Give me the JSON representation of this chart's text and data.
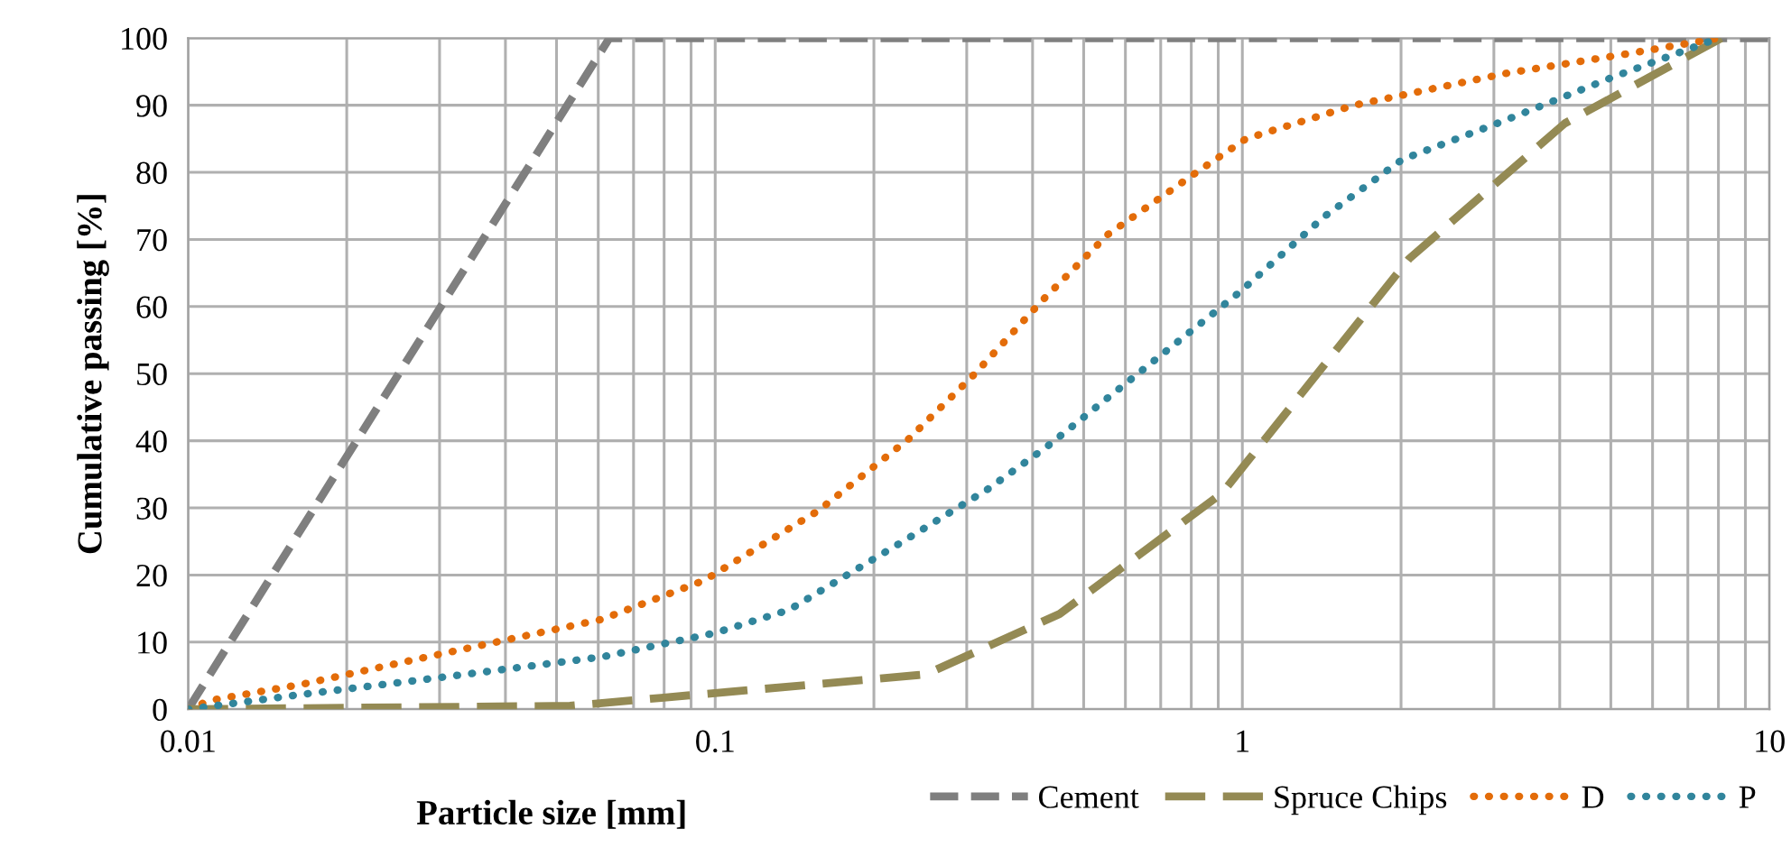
{
  "chart_data": {
    "type": "line",
    "xlabel": "Particle size [mm]",
    "ylabel": "Cumulative passing [%]",
    "log": "x",
    "xlim": [
      0.01,
      10
    ],
    "ylim": [
      0,
      100
    ],
    "xticks": [
      0.01,
      {
        "value": 0.02,
        "label": null
      },
      {
        "value": 0.03,
        "label": null
      },
      {
        "value": 0.04,
        "label": null
      },
      {
        "value": 0.05,
        "label": null
      },
      {
        "value": 0.06,
        "label": null
      },
      {
        "value": 0.07,
        "label": null
      },
      {
        "value": 0.08,
        "label": null
      },
      {
        "value": 0.09,
        "label": null
      },
      0.1,
      {
        "value": 0.2,
        "label": null
      },
      {
        "value": 0.3,
        "label": null
      },
      {
        "value": 0.4,
        "label": null
      },
      {
        "value": 0.5,
        "label": null
      },
      {
        "value": 0.6,
        "label": null
      },
      {
        "value": 0.7,
        "label": null
      },
      {
        "value": 0.8,
        "label": null
      },
      {
        "value": 0.9,
        "label": null
      },
      1,
      {
        "value": 2,
        "label": null
      },
      {
        "value": 3,
        "label": null
      },
      {
        "value": 4,
        "label": null
      },
      {
        "value": 5,
        "label": null
      },
      {
        "value": 6,
        "label": null
      },
      {
        "value": 7,
        "label": null
      },
      {
        "value": 8,
        "label": null
      },
      {
        "value": 9,
        "label": null
      },
      10
    ],
    "yticks": [
      0,
      10,
      20,
      30,
      40,
      50,
      60,
      70,
      80,
      90,
      100
    ],
    "grid": true,
    "legend": "bottom",
    "marker": "none",
    "series": [
      {
        "name": "Cement",
        "color": "#7f7f7f",
        "line_style": "dashed",
        "x": [
          0.01,
          0.063,
          10
        ],
        "values": [
          0,
          100,
          100
        ]
      },
      {
        "name": "Spruce Chips",
        "color": "#948a54",
        "line_style": "dashed",
        "x": [
          0.01,
          0.053,
          0.079,
          0.194,
          0.251,
          0.45,
          0.915,
          2.07,
          4.09,
          8.1
        ],
        "values": [
          0,
          0.5,
          1.7,
          4.4,
          5.2,
          14.2,
          32.2,
          67.1,
          87.3,
          100
        ]
      },
      {
        "name": "D",
        "color": "#e36c09",
        "line_style": "dotted",
        "x": [
          0.01,
          0.011,
          0.0164,
          0.0292,
          0.061,
          0.0953,
          0.157,
          0.233,
          0.311,
          0.416,
          0.555,
          0.822,
          1.016,
          1.63,
          3.14,
          5.32,
          8
        ],
        "values": [
          0,
          1.3,
          3.7,
          8.0,
          13.4,
          19.2,
          29.6,
          40.3,
          50,
          60.8,
          70.7,
          80.1,
          85,
          90,
          94.7,
          97.6,
          100
        ]
      },
      {
        "name": "P",
        "color": "#31859c",
        "line_style": "dotted",
        "x": [
          0.01,
          0.0164,
          0.0292,
          0.061,
          0.1003,
          0.138,
          0.184,
          0.227,
          0.329,
          0.427,
          0.667,
          0.99,
          1.43,
          2.01,
          3.14,
          5.05,
          8
        ],
        "values": [
          0,
          2.2,
          4.6,
          7.8,
          11.4,
          14.8,
          20.7,
          25,
          32.8,
          39.2,
          51.4,
          62.2,
          73.4,
          81.9,
          87.7,
          94.2,
          100
        ]
      }
    ]
  }
}
